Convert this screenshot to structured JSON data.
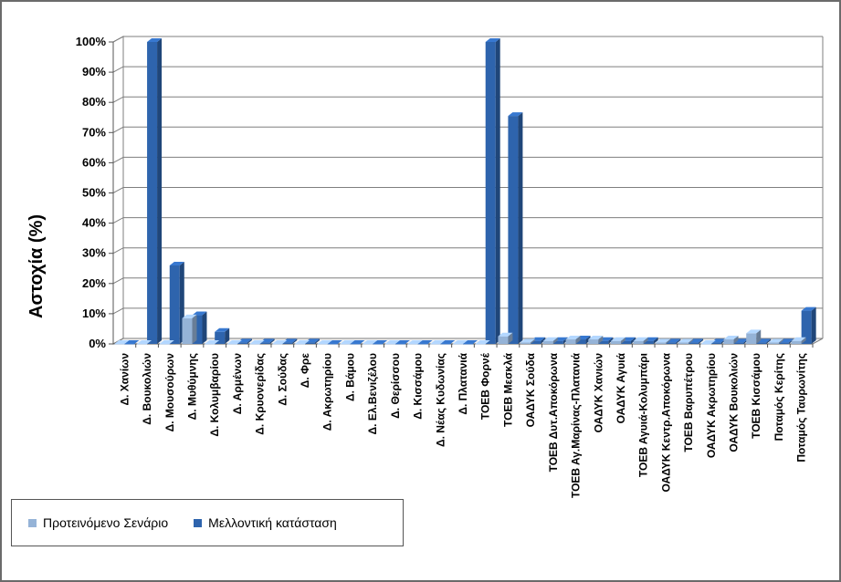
{
  "colors": {
    "proposed": "#95b3d7",
    "future": "#2e64ad",
    "grid": "#7f7f7f",
    "wall": "#ffffff"
  },
  "chart_data": {
    "type": "bar",
    "ylabel": "Αστοχία (%)",
    "ylim": [
      0,
      100
    ],
    "yticks": [
      "0%",
      "10%",
      "20%",
      "30%",
      "40%",
      "50%",
      "60%",
      "70%",
      "80%",
      "90%",
      "100%"
    ],
    "grid": true,
    "legend_position": "bottom-left",
    "categories": [
      "Δ. Χανίων",
      "Δ. Βουκολιών",
      "Δ. Μουσούρων",
      "Δ. Μυθύμνης",
      "Δ. Κολυμβαρίου",
      "Δ. Αρμένων",
      "Δ. Κρυονερίδας",
      "Δ. Σούδας",
      "Δ. Φρε",
      "Δ. Ακρωτηρίου",
      "Δ. Βάμου",
      "Δ. Ελ.Βενιζέλου",
      "Δ. Θερίσσου",
      "Δ. Κισσάμου",
      "Δ. Νέας Κυδωνίας",
      "Δ. Πλατανιά",
      "ΤΟΕΒ Φορνέ",
      "ΤΟΕΒ Μεσκλά",
      "ΟΑΔΥΚ Σούδα",
      "ΤΟΕΒ Δυτ.Αποκόρωνα",
      "ΤΟΕΒ Αγ.Μαρίνας-Πλατανιά",
      "ΟΑΔΥΚ Χανιών",
      "ΟΑΔΥΚ Αγυιά",
      "ΤΟΕΒ Αγυιά-Κολυμπάρι",
      "ΟΑΔΥΚ Κεντρ.Αποκόρωνα",
      "ΤΟΕΒ Βαρυπέτρου",
      "ΟΑΔΥΚ Ακρωτηρίου",
      "ΟΑΔΥΚ Βουκολιών",
      "ΤΟΕΒ Κισσάμου",
      "Ποταμός Κερίτης",
      "Ποταμός Ταυρωνίτης"
    ],
    "series": [
      {
        "name": "Προτεινόμενο Σενάριο",
        "values": [
          0,
          0,
          0,
          8.5,
          0,
          0,
          0,
          0,
          0,
          0,
          0,
          0,
          0,
          0,
          0,
          0,
          0,
          2.5,
          0.5,
          1,
          1.5,
          1.5,
          1,
          1,
          0.5,
          0.5,
          0,
          1.5,
          3.5,
          0.5,
          1
        ]
      },
      {
        "name": "Μελλοντική κατάσταση",
        "values": [
          0,
          100,
          26,
          9.5,
          4,
          0.5,
          0.5,
          0.5,
          0.5,
          0,
          0,
          0,
          0,
          0,
          0,
          0,
          100,
          75.5,
          1,
          1,
          1.5,
          1,
          1,
          1,
          0.5,
          0.5,
          0.5,
          0.5,
          0.5,
          0.5,
          11
        ]
      }
    ]
  }
}
